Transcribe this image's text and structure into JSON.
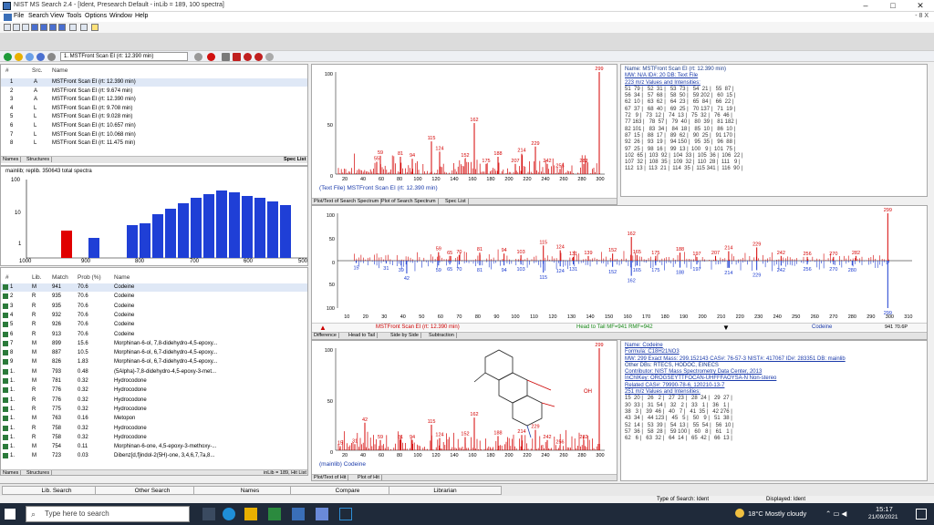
{
  "window": {
    "title": "NIST MS Search 2.4 - [Ident, Presearch Default - inLib = 189, 100 spectra]"
  },
  "menu": [
    "File",
    "Search",
    "View",
    "Tools",
    "Options",
    "Window",
    "Help"
  ],
  "menu_right": "- 8 X",
  "toolbar2": {
    "tab_label": "1. MSTFront Scan EI (rt: 12.390 min)"
  },
  "spec_list": {
    "headers": [
      "#",
      "Src.",
      "Name"
    ],
    "rows": [
      {
        "n": "1",
        "src": "A",
        "name": "MSTFront Scan EI (rt: 12.390 min)"
      },
      {
        "n": "2",
        "src": "A",
        "name": "MSTFront Scan EI (rt: 9.674 min)"
      },
      {
        "n": "3",
        "src": "A",
        "name": "MSTFront Scan EI (rt: 12.390 min)"
      },
      {
        "n": "4",
        "src": "L",
        "name": "MSTFront Scan EI (rt: 9.708 min)"
      },
      {
        "n": "5",
        "src": "L",
        "name": "MSTFront Scan EI (rt: 9.028 min)"
      },
      {
        "n": "6",
        "src": "L",
        "name": "MSTFront Scan EI (rt: 10.657 min)"
      },
      {
        "n": "7",
        "src": "L",
        "name": "MSTFront Scan EI (rt: 10.068 min)"
      },
      {
        "n": "8",
        "src": "L",
        "name": "MSTFront Scan EI (rt: 11.475 min)"
      }
    ],
    "tabs": [
      "Names",
      "Structures"
    ],
    "footer": "Spec List"
  },
  "histogram": {
    "label": "mainlib; replib. 350643 total spectra",
    "ytick_top": "100",
    "ytick_mid": "10",
    "ytick_low": "1",
    "xticks": [
      "1000",
      "900",
      "800",
      "700",
      "600",
      "500"
    ]
  },
  "hit_list": {
    "headers": [
      "#",
      "Lib.",
      "Match",
      "Prob (%)",
      "Name"
    ],
    "rows": [
      {
        "n": "1",
        "lib": "M",
        "match": "941",
        "prob": "70.6",
        "name": "Codeine"
      },
      {
        "n": "2",
        "lib": "R",
        "match": "935",
        "prob": "70.6",
        "name": "Codeine"
      },
      {
        "n": "3",
        "lib": "R",
        "match": "935",
        "prob": "70.6",
        "name": "Codeine"
      },
      {
        "n": "4",
        "lib": "R",
        "match": "932",
        "prob": "70.6",
        "name": "Codeine"
      },
      {
        "n": "5",
        "lib": "R",
        "match": "926",
        "prob": "70.6",
        "name": "Codeine"
      },
      {
        "n": "6",
        "lib": "R",
        "match": "913",
        "prob": "70.6",
        "name": "Codeine"
      },
      {
        "n": "7",
        "lib": "M",
        "match": "899",
        "prob": "15.6",
        "name": "Morphinan-6-ol, 7,8-didehydro-4,5-epoxy..."
      },
      {
        "n": "8",
        "lib": "M",
        "match": "887",
        "prob": "10.5",
        "name": "Morphinan-6-ol, 6,7-didehydro-4,5-epoxy..."
      },
      {
        "n": "9",
        "lib": "M",
        "match": "826",
        "prob": "1.83",
        "name": "Morphinan-6-ol, 6,7-didehydro-4,5-epoxy..."
      },
      {
        "n": "1.",
        "lib": "M",
        "match": "793",
        "prob": "0.48",
        "name": "(5Alpha)-7,8-didehydro-4,5-epoxy-3-met..."
      },
      {
        "n": "1.",
        "lib": "M",
        "match": "781",
        "prob": "0.32",
        "name": "Hydrocodone"
      },
      {
        "n": "1.",
        "lib": "R",
        "match": "776",
        "prob": "0.32",
        "name": "Hydrocodone"
      },
      {
        "n": "1.",
        "lib": "R",
        "match": "776",
        "prob": "0.32",
        "name": "Hydrocodone"
      },
      {
        "n": "1.",
        "lib": "R",
        "match": "775",
        "prob": "0.32",
        "name": "Hydrocodone"
      },
      {
        "n": "1.",
        "lib": "M",
        "match": "763",
        "prob": "0.16",
        "name": "Metopon"
      },
      {
        "n": "1.",
        "lib": "R",
        "match": "758",
        "prob": "0.32",
        "name": "Hydrocodone"
      },
      {
        "n": "1.",
        "lib": "R",
        "match": "758",
        "prob": "0.32",
        "name": "Hydrocodone"
      },
      {
        "n": "1.",
        "lib": "M",
        "match": "754",
        "prob": "0.11",
        "name": "Morphinan-6-one, 4,5-epoxy-3-methoxy-..."
      },
      {
        "n": "1.",
        "lib": "M",
        "match": "723",
        "prob": "0.03",
        "name": "Dibenz[d,f]indol-2(5H)-one, 3,4,6,7,7a,8..."
      }
    ],
    "tabs": [
      "Names",
      "Structures"
    ],
    "footer": "inLib = 189, Hit List"
  },
  "top_spectrum": {
    "ylabels": [
      "100",
      "50",
      "0"
    ],
    "xticks": [
      "20",
      "40",
      "60",
      "80",
      "100",
      "120",
      "140",
      "160",
      "180",
      "200",
      "220",
      "240",
      "260",
      "280",
      "300"
    ],
    "peak_labels": [
      "299",
      "162",
      "115",
      "229",
      "124",
      "59",
      "81",
      "94",
      "152",
      "188",
      "214",
      "55",
      "175",
      "207",
      "242",
      "282",
      "256"
    ],
    "caption": "(Text File) MSTFront Scan EI (rt: 12.390 min)",
    "tabs": [
      "Plot/Text of Search Spectrum",
      "Plot of Search Spectrum",
      "Spec List"
    ]
  },
  "top_info": {
    "line1": "Name: MSTFront Scan EI (rt: 12.390 min)",
    "line2": "MW: N/A ID#: 20 DB: Text File",
    "line3": "223 m/z Values and Intensities:",
    "table": [
      "51  79 |   52  31 |   53  73 |   54  21 |   55  87 |",
      "56  34 |   57  68 |   58  50 |   59 202 |   60  15 |",
      "62  10 |   63  62 |   64  23 |   65  84 |   66  22 |",
      "67  37 |   68  40 |   69  25 |   70 137 |   71  19 |",
      "72   9 |   73  12 |   74  13 |   75  32 |   76  46 |",
      "77 163 |   78  57 |   79  40 |   80  39 |   81 182 |",
      "82 101 |   83  34 |   84  18 |   85  10 |   86  10 |",
      "87  15 |   88  17 |   89  62 |   90  25 |   91 170 |",
      "92  26 |   93  19 |   94 150 |   95  35 |   96  88 |",
      "97  25 |   98  16 |   99  13 |  100   9 |  101  75 |",
      "102  65 |  103  92 |  104  33 |  105  36 |  106  22 |",
      "107  32 |  108  35 |  109  32 |  110  28 |  111   9 |",
      "112  13 |  113  21 |  114  35 |  115 341 |  116  90 |"
    ]
  },
  "compare": {
    "ylabels_top": [
      "100",
      "50",
      "0"
    ],
    "ylabels_bottom": [
      "50",
      "100"
    ],
    "xticks": [
      "10",
      "20",
      "30",
      "40",
      "50",
      "60",
      "70",
      "80",
      "90",
      "100",
      "110",
      "120",
      "130",
      "140",
      "150",
      "160",
      "170",
      "180",
      "190",
      "200",
      "210",
      "220",
      "230",
      "240",
      "250",
      "260",
      "270",
      "280",
      "290",
      "300",
      "310"
    ],
    "top_labels": [
      "299",
      "162",
      "115",
      "124",
      "229",
      "59",
      "65",
      "70",
      "81",
      "94",
      "103",
      "131",
      "139",
      "152",
      "165",
      "175",
      "188",
      "197",
      "207",
      "214",
      "242",
      "256",
      "270",
      "282"
    ],
    "bottom_labels": [
      "299",
      "15",
      "31",
      "39",
      "42",
      "59",
      "65",
      "70",
      "81",
      "94",
      "103",
      "115",
      "124",
      "131",
      "152",
      "162",
      "165",
      "175",
      "188",
      "197",
      "214",
      "229",
      "242",
      "256",
      "270",
      "280"
    ],
    "caption_left": "MSTFront Scan EI (rt: 12.390 min)",
    "caption_mid": "Head to Tail MF=941 RMF=942",
    "caption_right": "Codeine",
    "counter": "941 70.6P",
    "tabs": [
      "Difference",
      "Head to Tail",
      "Side by Side",
      "Subtraction"
    ]
  },
  "bottom_spectrum": {
    "ylabels": [
      "100",
      "50",
      "0"
    ],
    "xticks": [
      "20",
      "40",
      "60",
      "80",
      "100",
      "120",
      "140",
      "160",
      "180",
      "200",
      "220",
      "240",
      "260",
      "280",
      "300"
    ],
    "peak_labels": [
      "299",
      "162",
      "42",
      "115",
      "229",
      "59",
      "81",
      "94",
      "124",
      "152",
      "188",
      "214",
      "15",
      "31",
      "242",
      "282",
      "256"
    ],
    "caption": "(mainlib) Codeine",
    "tabs": [
      "Plot/Text of Hit",
      "Plot of Hit"
    ],
    "oh_label": "OH"
  },
  "bottom_info": {
    "line1": "Name: Codeine",
    "line2": "Formula: C18H21NO3",
    "line3": "MW: 299 Exact Mass: 299.152143 CAS#: 76-57-3 NIST#: 417067 ID#: 283351 DB: mainlib",
    "line4": "Other DBs: RTECS, HODOC, EINECS",
    "line5": "Contributor: NIST Mass Spectrometry Data Center, 2013",
    "line6": "InChIKey: OROGSEYTTFOCAN-UHFFFAOYSA-N  Non-stereo",
    "line7": "Related CAS#: 79990-78-6, 120210-13-7",
    "line8": "251 m/z Values and Intensities:",
    "table": [
      "15  20 |   26   2 |   27  23 |   28  24 |   29  27 |",
      "30  33 |   31  54 |   32   2 |   33   1 |   36   1 |",
      "38   3 |   39  46 |   40   7 |   41  35 |   42 276 |",
      "43  34 |   44 123 |   45   5 |   50   9 |   51  38 |",
      "52  14 |   53  39 |   54  13 |   55  54 |   56  10 |",
      "57  36 |   58  28 |   59 100 |   60   8 |   61   1 |",
      "62   6 |   63  32 |   64  14 |   65  42 |   66  13 |"
    ]
  },
  "bottom_tabs": [
    "Lib. Search",
    "Other Search",
    "Names",
    "Compare",
    "Librarian"
  ],
  "status": {
    "left": "Type of Search: Ident",
    "right": "Displayed: Ident"
  },
  "taskbar": {
    "search_placeholder": "Type here to search",
    "weather": "18°C  Mostly cloudy",
    "time": "15:17",
    "date": "21/09/2021"
  },
  "colors": {
    "accent": "#cc0000",
    "hist_blue": "#1f3fd6",
    "hist_red": "#e00000",
    "link": "#1a3aaa"
  }
}
